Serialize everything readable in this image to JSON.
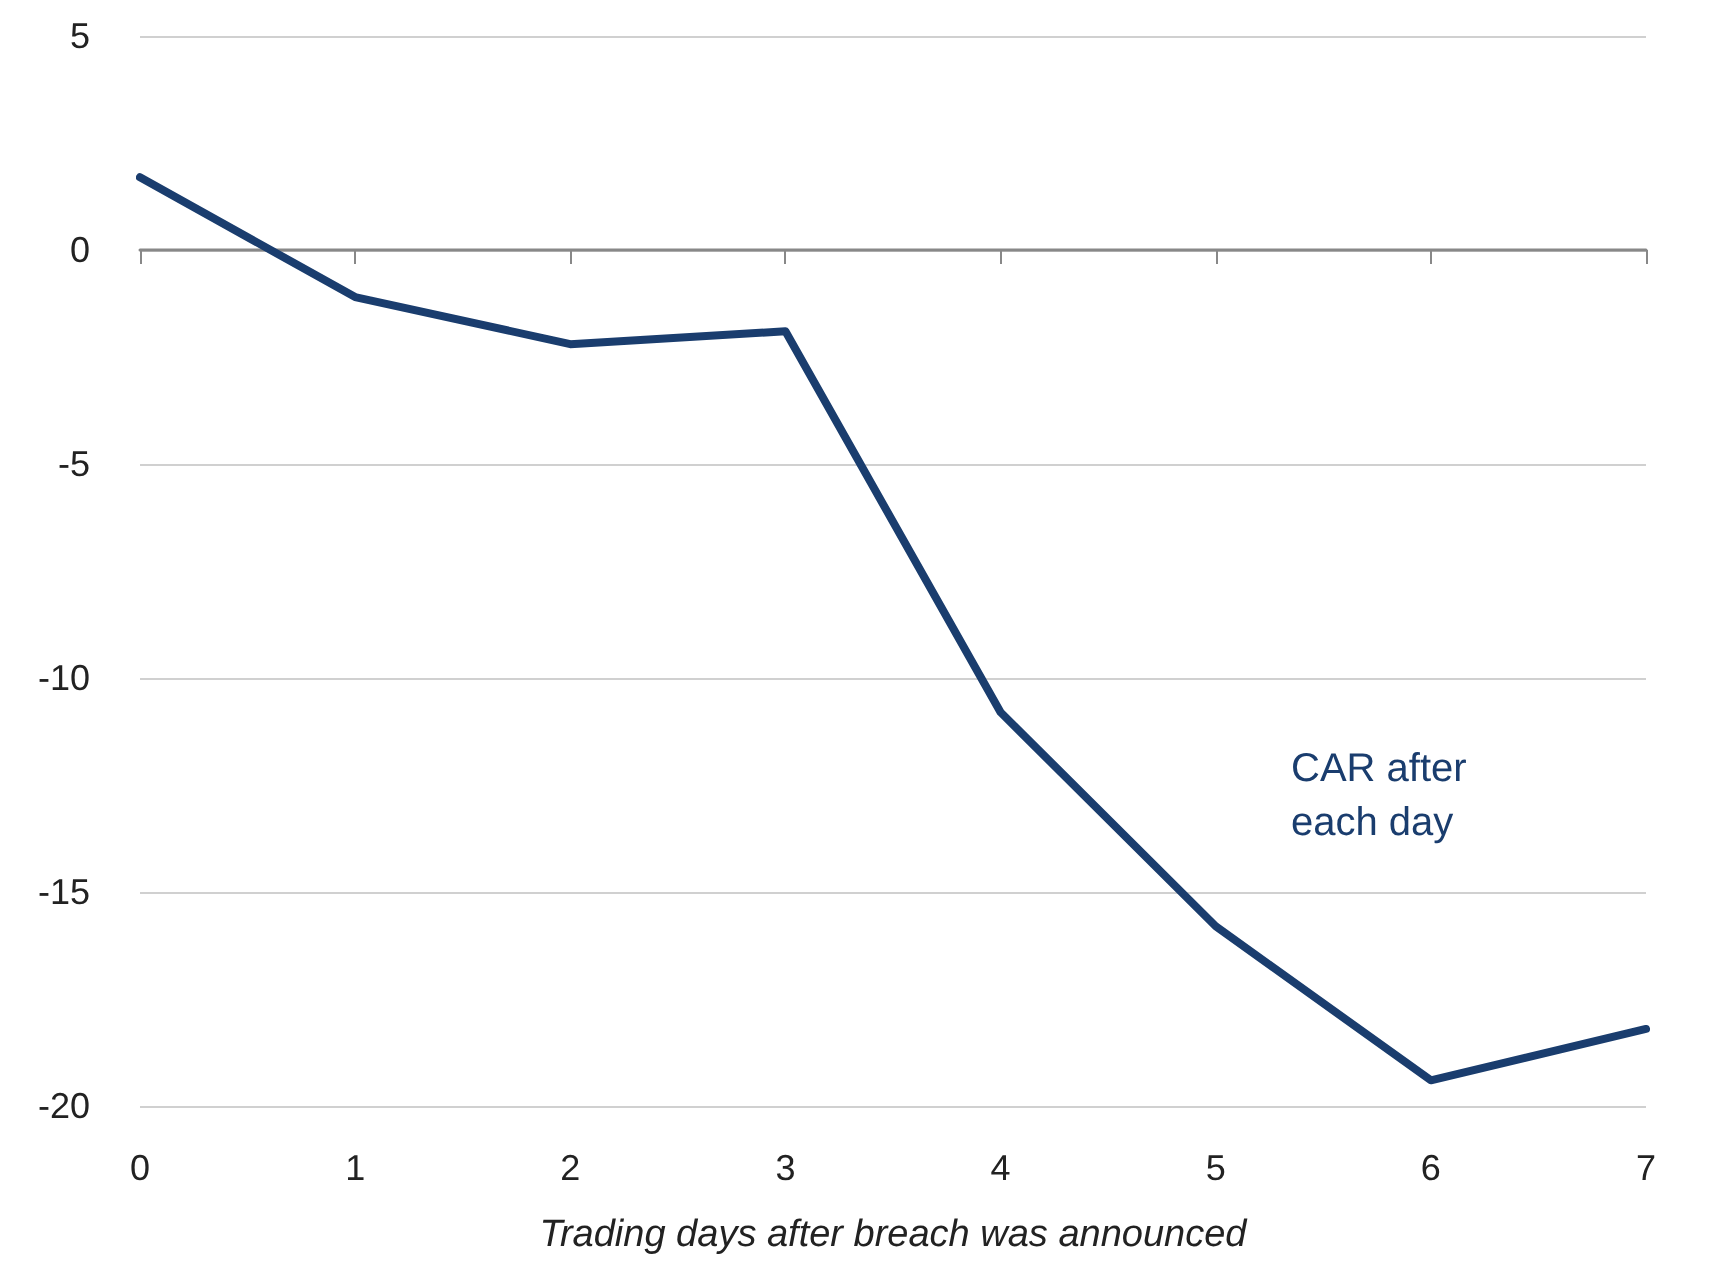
{
  "chart_data": {
    "type": "line",
    "xlabel": "Trading days after breach was announced",
    "x": [
      0,
      1,
      2,
      3,
      4,
      5,
      6,
      7
    ],
    "series": [
      {
        "name": "CAR after each day",
        "color": "#1a3d6e",
        "values": [
          1.7,
          -1.1,
          -2.2,
          -1.9,
          -10.8,
          -15.8,
          -19.4,
          -18.2
        ]
      }
    ],
    "xlim": [
      0,
      7
    ],
    "xticks": [
      0,
      1,
      2,
      3,
      4,
      5,
      6,
      7
    ],
    "ylim": [
      -20,
      5
    ],
    "yticks": [
      -20,
      -15,
      -10,
      -5,
      0,
      5
    ],
    "grid": "y",
    "legend": false,
    "marker": "none",
    "line_style": "solid"
  }
}
